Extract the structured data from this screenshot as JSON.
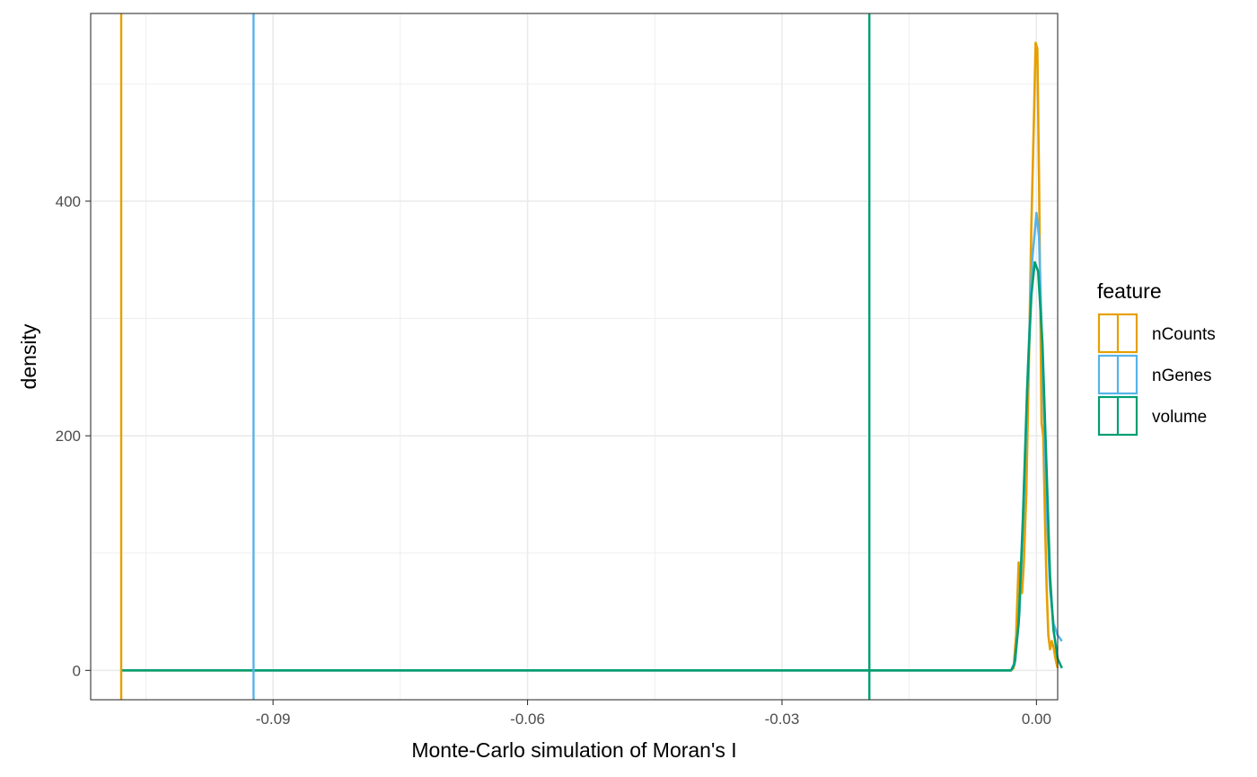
{
  "chart_data": {
    "type": "line",
    "xlabel": "Monte-Carlo simulation of Moran's I",
    "ylabel": "density",
    "xlim": [
      -0.1115,
      0.0025
    ],
    "ylim": [
      -25,
      560
    ],
    "x_ticks": [
      -0.09,
      -0.06,
      -0.03,
      0.0
    ],
    "x_tick_labels": [
      "-0.09",
      "-0.06",
      "-0.03",
      "0.00"
    ],
    "y_ticks": [
      0,
      200,
      400
    ],
    "y_tick_labels": [
      "0",
      "200",
      "400"
    ],
    "grid": true,
    "legend": {
      "title": "feature",
      "placement": "right",
      "entries": [
        "nCounts",
        "nGenes",
        "volume"
      ]
    },
    "series": [
      {
        "name": "nCounts",
        "color": "#E69F00",
        "observed": -0.1079,
        "density": [
          [
            -0.1079,
            0
          ],
          [
            -0.003,
            0
          ],
          [
            -0.0027,
            2
          ],
          [
            -0.0024,
            30
          ],
          [
            -0.0021,
            92
          ],
          [
            -0.0019,
            70
          ],
          [
            -0.0017,
            66
          ],
          [
            -0.0015,
            90
          ],
          [
            -0.0012,
            150
          ],
          [
            -0.0009,
            260
          ],
          [
            -0.0006,
            380
          ],
          [
            -0.0003,
            470
          ],
          [
            -0.0001,
            535
          ],
          [
            0.0001,
            530
          ],
          [
            0.0003,
            420
          ],
          [
            0.0005,
            280
          ],
          [
            0.0006,
            211
          ],
          [
            0.0008,
            200
          ],
          [
            0.001,
            130
          ],
          [
            0.0012,
            70
          ],
          [
            0.0014,
            30
          ],
          [
            0.0016,
            18
          ],
          [
            0.0018,
            25
          ],
          [
            0.002,
            20
          ],
          [
            0.0023,
            8
          ],
          [
            0.0025,
            2
          ]
        ]
      },
      {
        "name": "nGenes",
        "color": "#56B4E9",
        "observed": -0.0923,
        "density": [
          [
            -0.0923,
            0
          ],
          [
            -0.003,
            0
          ],
          [
            -0.0025,
            8
          ],
          [
            -0.002,
            50
          ],
          [
            -0.0015,
            140
          ],
          [
            -0.001,
            260
          ],
          [
            -0.0005,
            350
          ],
          [
            0.0,
            390
          ],
          [
            0.0003,
            370
          ],
          [
            0.0008,
            240
          ],
          [
            0.0012,
            140
          ],
          [
            0.0016,
            70
          ],
          [
            0.002,
            40
          ],
          [
            0.0025,
            30
          ],
          [
            0.003,
            25
          ]
        ]
      },
      {
        "name": "volume",
        "color": "#009E73",
        "observed": -0.0197,
        "density": [
          [
            -0.1079,
            0
          ],
          [
            -0.003,
            0
          ],
          [
            -0.0026,
            5
          ],
          [
            -0.0021,
            40
          ],
          [
            -0.0016,
            130
          ],
          [
            -0.0011,
            240
          ],
          [
            -0.0006,
            320
          ],
          [
            -0.0002,
            348
          ],
          [
            0.0002,
            340
          ],
          [
            0.0007,
            280
          ],
          [
            0.0012,
            170
          ],
          [
            0.0016,
            80
          ],
          [
            0.002,
            35
          ],
          [
            0.0025,
            10
          ],
          [
            0.003,
            2
          ]
        ]
      }
    ]
  }
}
